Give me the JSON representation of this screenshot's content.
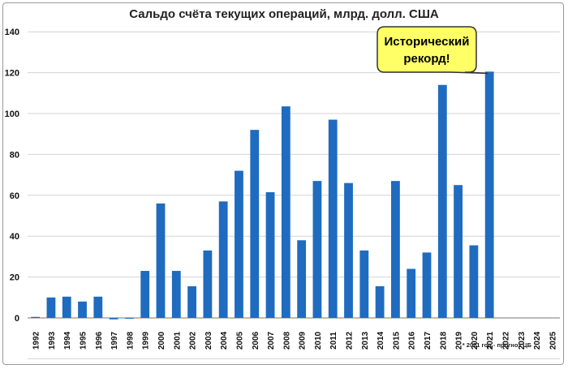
{
  "chart_data": {
    "type": "bar",
    "title": "Сальдо счёта текущих операций, млрд. долл. США",
    "categories": [
      "1992",
      "1993",
      "1994",
      "1995",
      "1996",
      "1997",
      "1998",
      "1999",
      "2000",
      "2001",
      "2002",
      "2003",
      "2004",
      "2005",
      "2006",
      "2007",
      "2008",
      "2009",
      "2010",
      "2011",
      "2012",
      "2013",
      "2014",
      "2015",
      "2016",
      "2017",
      "2018",
      "2019",
      "2020",
      "2021",
      "2022",
      "2023",
      "2024",
      "2025"
    ],
    "values": [
      0.5,
      10,
      10.4,
      8,
      10.4,
      -0.7,
      0,
      23,
      56,
      23,
      15.5,
      33,
      57,
      72,
      92,
      61.5,
      103.5,
      38,
      67,
      97,
      66,
      33,
      15.5,
      67,
      24,
      32,
      114,
      65,
      35.5,
      120.5,
      null,
      null,
      null,
      null
    ],
    "yticks": [
      "0",
      "20",
      "40",
      "60",
      "80",
      "100",
      "120",
      "140"
    ],
    "ylim": [
      -20,
      140
    ],
    "xlabel": "",
    "ylabel": "",
    "grid": true,
    "bar_color": "#1f6bbf",
    "callout": {
      "line1": "Исторический",
      "line2": "рекорд!",
      "fill": "#ffff66"
    },
    "note": "* 2021 год - прогноз ЦБ"
  }
}
